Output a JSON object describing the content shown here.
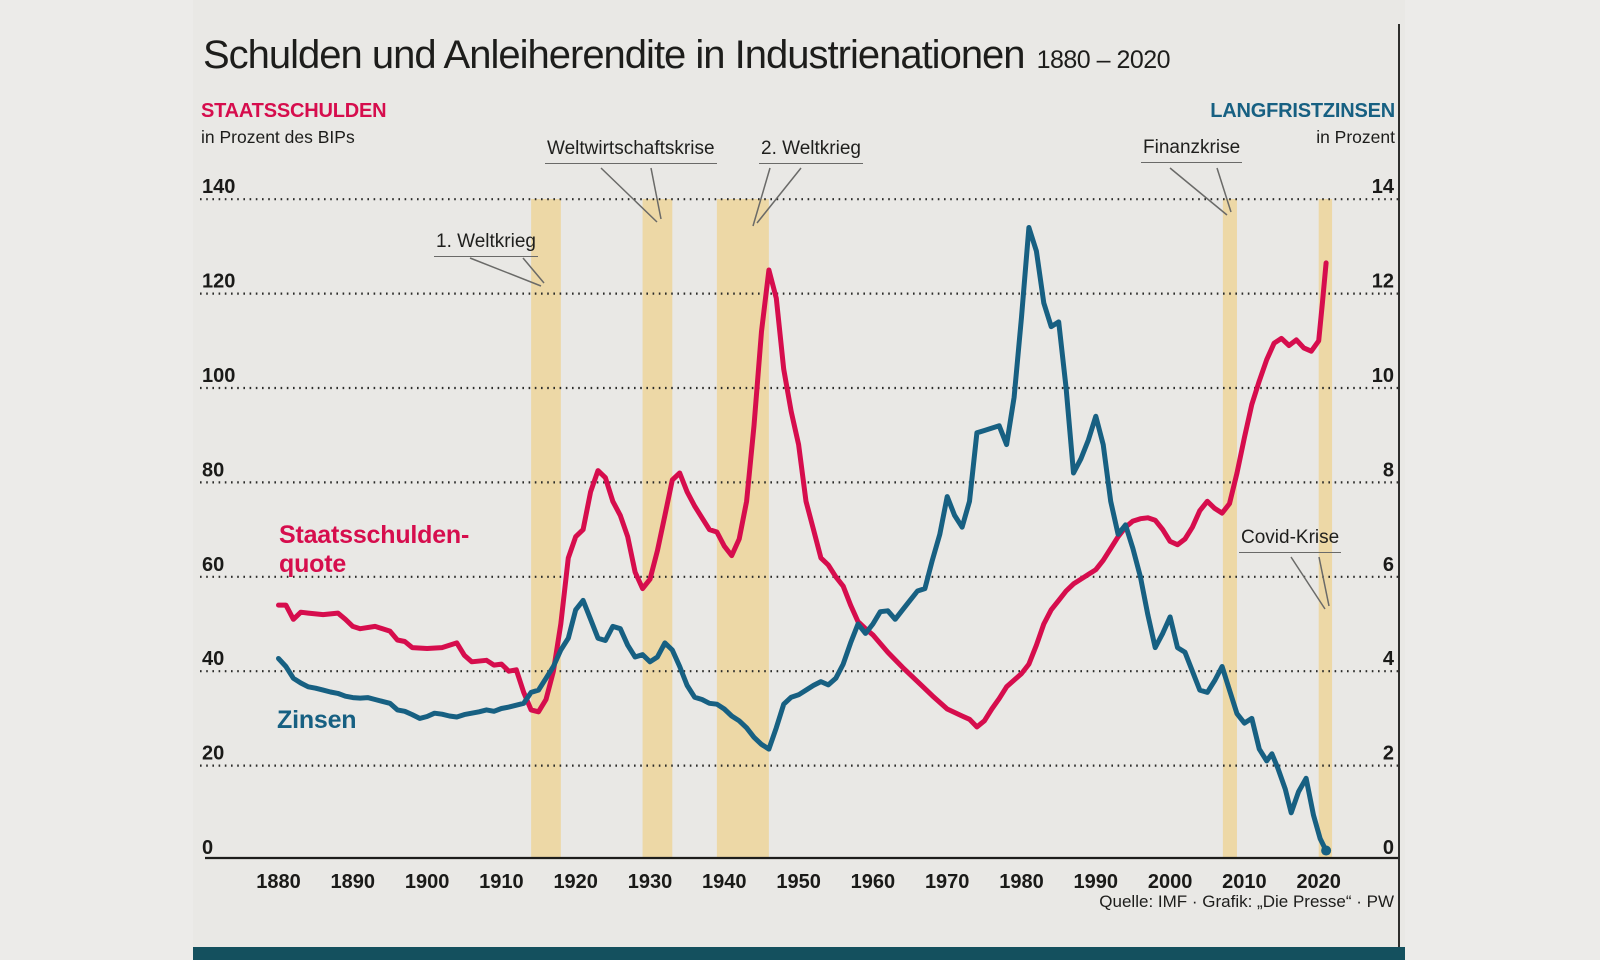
{
  "title": "Schulden und Anleiherendite in Industrienationen",
  "title_range": "1880 – 2020",
  "left_header": {
    "line1": "STAATSSCHULDEN",
    "line2": "in Prozent des BIPs"
  },
  "right_header": {
    "line1": "LANGFRISTZINSEN",
    "line2": "in Prozent"
  },
  "series_labels": {
    "debt_line1": "Staatsschulden-",
    "debt_line2": "quote",
    "rate": "Zinsen"
  },
  "source": "Quelle: IMF · Grafik: „Die Presse“ · PW",
  "colors": {
    "debt_line": "#d60d4d",
    "rate_line": "#176082",
    "event_band": "#edd8a6",
    "panel_background": "#e9e8e5",
    "footer_bar": "#14505e",
    "grid_dots": "#2b2b29",
    "axis_line": "#1d1d1b",
    "annotation_line": "#6a6a68"
  },
  "chart_data": {
    "type": "line",
    "title": "Schulden und Anleiherendite in Industrienationen",
    "x_range": [
      1880,
      2021
    ],
    "x_ticks": [
      1880,
      1890,
      1900,
      1910,
      1920,
      1930,
      1940,
      1950,
      1960,
      1970,
      1980,
      1990,
      2000,
      2010,
      2020
    ],
    "left_axis": {
      "label": "STAATSSCHULDEN in Prozent des BIPs",
      "ticks": [
        140,
        120,
        100,
        80,
        60,
        40,
        20,
        0
      ],
      "range": [
        0,
        140
      ],
      "grid": "dotted"
    },
    "right_axis": {
      "label": "LANGFRISTZINSEN in Prozent",
      "ticks": [
        14,
        12,
        10,
        8,
        6,
        4,
        2,
        0
      ],
      "range": [
        0,
        14
      ],
      "grid": "shared"
    },
    "bands": [
      {
        "id": "ww1",
        "label": "1. Weltkrieg",
        "from": 1914,
        "to": 1918
      },
      {
        "id": "wwk",
        "label": "Weltwirtschaftskrise",
        "from": 1929,
        "to": 1933
      },
      {
        "id": "ww2",
        "label": "2. Weltkrieg",
        "from": 1939,
        "to": 1946
      },
      {
        "id": "fin",
        "label": "Finanzkrise",
        "from": 2007.1,
        "to": 2009
      },
      {
        "id": "covid",
        "label": "Covid-Krise",
        "from": 2020,
        "to": 2021.8
      }
    ],
    "series": [
      {
        "name": "Staatsschuldenquote",
        "axis": "left",
        "unit": "% des BIPs",
        "points": [
          [
            1880,
            54
          ],
          [
            1881,
            54
          ],
          [
            1882,
            51
          ],
          [
            1883,
            52.5
          ],
          [
            1884,
            52.3
          ],
          [
            1886,
            52
          ],
          [
            1888,
            52.3
          ],
          [
            1889,
            51
          ],
          [
            1890,
            49.5
          ],
          [
            1891,
            49
          ],
          [
            1893,
            49.5
          ],
          [
            1895,
            48.5
          ],
          [
            1896,
            46.6
          ],
          [
            1897,
            46.3
          ],
          [
            1898,
            45
          ],
          [
            1900,
            44.8
          ],
          [
            1902,
            45
          ],
          [
            1903,
            45.5
          ],
          [
            1904,
            46
          ],
          [
            1905,
            43.4
          ],
          [
            1906,
            42
          ],
          [
            1908,
            42.3
          ],
          [
            1909,
            41.3
          ],
          [
            1910,
            41.5
          ],
          [
            1911,
            40
          ],
          [
            1912,
            40.3
          ],
          [
            1913,
            35.5
          ],
          [
            1914,
            31.8
          ],
          [
            1915,
            31.4
          ],
          [
            1916,
            34
          ],
          [
            1917,
            40
          ],
          [
            1918,
            50
          ],
          [
            1919,
            64
          ],
          [
            1920,
            68.5
          ],
          [
            1921,
            70
          ],
          [
            1922,
            78
          ],
          [
            1923,
            82.5
          ],
          [
            1924,
            81
          ],
          [
            1925,
            76
          ],
          [
            1926,
            73
          ],
          [
            1927,
            68.5
          ],
          [
            1928,
            61
          ],
          [
            1929,
            57.5
          ],
          [
            1930,
            59.5
          ],
          [
            1931,
            65.5
          ],
          [
            1932,
            73
          ],
          [
            1933,
            80.5
          ],
          [
            1934,
            82
          ],
          [
            1935,
            78
          ],
          [
            1936,
            75
          ],
          [
            1937,
            72.5
          ],
          [
            1938,
            70
          ],
          [
            1939,
            69.5
          ],
          [
            1940,
            66.5
          ],
          [
            1941,
            64.5
          ],
          [
            1942,
            68
          ],
          [
            1943,
            76
          ],
          [
            1944,
            92
          ],
          [
            1945,
            112
          ],
          [
            1946,
            125
          ],
          [
            1947,
            119
          ],
          [
            1948,
            104
          ],
          [
            1949,
            95
          ],
          [
            1950,
            88
          ],
          [
            1951,
            76
          ],
          [
            1952,
            70
          ],
          [
            1953,
            64
          ],
          [
            1954,
            62.5
          ],
          [
            1955,
            60
          ],
          [
            1956,
            58
          ],
          [
            1957,
            54
          ],
          [
            1958,
            50.5
          ],
          [
            1959,
            49
          ],
          [
            1960,
            47.7
          ],
          [
            1962,
            44
          ],
          [
            1964,
            40.8
          ],
          [
            1966,
            37.8
          ],
          [
            1968,
            34.8
          ],
          [
            1970,
            32
          ],
          [
            1972,
            30.5
          ],
          [
            1973,
            29.8
          ],
          [
            1974,
            28.2
          ],
          [
            1975,
            29.5
          ],
          [
            1976,
            32
          ],
          [
            1977,
            34.2
          ],
          [
            1978,
            36.7
          ],
          [
            1980,
            39.5
          ],
          [
            1981,
            41.5
          ],
          [
            1982,
            45.5
          ],
          [
            1983,
            50
          ],
          [
            1984,
            53
          ],
          [
            1985,
            55
          ],
          [
            1986,
            57
          ],
          [
            1987,
            58.5
          ],
          [
            1988,
            59.5
          ],
          [
            1989,
            60.5
          ],
          [
            1990,
            61.5
          ],
          [
            1991,
            63.5
          ],
          [
            1992,
            66
          ],
          [
            1993,
            68.5
          ],
          [
            1994,
            70.5
          ],
          [
            1995,
            71.8
          ],
          [
            1996,
            72.3
          ],
          [
            1997,
            72.5
          ],
          [
            1998,
            72
          ],
          [
            1999,
            70
          ],
          [
            2000,
            67.5
          ],
          [
            2001,
            66.8
          ],
          [
            2002,
            68
          ],
          [
            2003,
            70.5
          ],
          [
            2004,
            74
          ],
          [
            2005,
            76
          ],
          [
            2006,
            74.5
          ],
          [
            2007,
            73.5
          ],
          [
            2008,
            75.5
          ],
          [
            2009,
            82
          ],
          [
            2010,
            89.5
          ],
          [
            2011,
            96.5
          ],
          [
            2012,
            101.5
          ],
          [
            2013,
            106
          ],
          [
            2014,
            109.5
          ],
          [
            2015,
            110.5
          ],
          [
            2016,
            109
          ],
          [
            2017,
            110.2
          ],
          [
            2018,
            108.5
          ],
          [
            2019,
            107.8
          ],
          [
            2020,
            110
          ],
          [
            2020.5,
            118
          ],
          [
            2021,
            126.5
          ]
        ]
      },
      {
        "name": "Zinsen",
        "axis": "right",
        "unit": "%",
        "points": [
          [
            1880,
            4.27
          ],
          [
            1881,
            4.1
          ],
          [
            1882,
            3.85
          ],
          [
            1883,
            3.75
          ],
          [
            1884,
            3.67
          ],
          [
            1885,
            3.64
          ],
          [
            1886,
            3.6
          ],
          [
            1887,
            3.56
          ],
          [
            1888,
            3.53
          ],
          [
            1889,
            3.47
          ],
          [
            1890,
            3.44
          ],
          [
            1891,
            3.43
          ],
          [
            1892,
            3.44
          ],
          [
            1893,
            3.4
          ],
          [
            1894,
            3.36
          ],
          [
            1895,
            3.32
          ],
          [
            1896,
            3.18
          ],
          [
            1897,
            3.15
          ],
          [
            1898,
            3.08
          ],
          [
            1899,
            3
          ],
          [
            1900,
            3.04
          ],
          [
            1901,
            3.11
          ],
          [
            1902,
            3.09
          ],
          [
            1903,
            3.05
          ],
          [
            1904,
            3.03
          ],
          [
            1905,
            3.08
          ],
          [
            1906,
            3.11
          ],
          [
            1907,
            3.14
          ],
          [
            1908,
            3.18
          ],
          [
            1909,
            3.15
          ],
          [
            1910,
            3.21
          ],
          [
            1911,
            3.24
          ],
          [
            1912,
            3.28
          ],
          [
            1913,
            3.32
          ],
          [
            1914,
            3.55
          ],
          [
            1915,
            3.6
          ],
          [
            1916,
            3.85
          ],
          [
            1917,
            4.1
          ],
          [
            1918,
            4.45
          ],
          [
            1919,
            4.7
          ],
          [
            1920,
            5.3
          ],
          [
            1921,
            5.5
          ],
          [
            1922,
            5.1
          ],
          [
            1923,
            4.7
          ],
          [
            1924,
            4.65
          ],
          [
            1925,
            4.95
          ],
          [
            1926,
            4.9
          ],
          [
            1927,
            4.55
          ],
          [
            1928,
            4.3
          ],
          [
            1929,
            4.35
          ],
          [
            1930,
            4.2
          ],
          [
            1931,
            4.3
          ],
          [
            1932,
            4.6
          ],
          [
            1933,
            4.45
          ],
          [
            1934,
            4.1
          ],
          [
            1935,
            3.7
          ],
          [
            1936,
            3.45
          ],
          [
            1937,
            3.4
          ],
          [
            1938,
            3.32
          ],
          [
            1939,
            3.3
          ],
          [
            1940,
            3.2
          ],
          [
            1941,
            3.05
          ],
          [
            1942,
            2.95
          ],
          [
            1943,
            2.8
          ],
          [
            1944,
            2.6
          ],
          [
            1945,
            2.45
          ],
          [
            1946,
            2.35
          ],
          [
            1947,
            2.8
          ],
          [
            1948,
            3.3
          ],
          [
            1949,
            3.45
          ],
          [
            1950,
            3.5
          ],
          [
            1951,
            3.6
          ],
          [
            1952,
            3.7
          ],
          [
            1953,
            3.78
          ],
          [
            1954,
            3.71
          ],
          [
            1955,
            3.85
          ],
          [
            1956,
            4.15
          ],
          [
            1957,
            4.6
          ],
          [
            1958,
            5
          ],
          [
            1959,
            4.8
          ],
          [
            1960,
            5
          ],
          [
            1961,
            5.26
          ],
          [
            1962,
            5.28
          ],
          [
            1963,
            5.1
          ],
          [
            1964,
            5.3
          ],
          [
            1965,
            5.5
          ],
          [
            1966,
            5.7
          ],
          [
            1967,
            5.75
          ],
          [
            1968,
            6.35
          ],
          [
            1969,
            6.9
          ],
          [
            1970,
            7.7
          ],
          [
            1971,
            7.3
          ],
          [
            1972,
            7.05
          ],
          [
            1973,
            7.6
          ],
          [
            1974,
            9.05
          ],
          [
            1975,
            9.1
          ],
          [
            1976,
            9.15
          ],
          [
            1977,
            9.2
          ],
          [
            1978,
            8.8
          ],
          [
            1979,
            9.8
          ],
          [
            1980,
            11.5
          ],
          [
            1981,
            13.4
          ],
          [
            1982,
            12.9
          ],
          [
            1983,
            11.8
          ],
          [
            1984,
            11.3
          ],
          [
            1985,
            11.4
          ],
          [
            1986,
            10
          ],
          [
            1987,
            8.2
          ],
          [
            1988,
            8.5
          ],
          [
            1989,
            8.9
          ],
          [
            1990,
            9.4
          ],
          [
            1991,
            8.8
          ],
          [
            1992,
            7.6
          ],
          [
            1993,
            6.9
          ],
          [
            1994,
            7.1
          ],
          [
            1995,
            6.6
          ],
          [
            1996,
            6
          ],
          [
            1997,
            5.2
          ],
          [
            1998,
            4.5
          ],
          [
            1999,
            4.8
          ],
          [
            2000,
            5.15
          ],
          [
            2001,
            4.5
          ],
          [
            2002,
            4.4
          ],
          [
            2003,
            4
          ],
          [
            2004,
            3.6
          ],
          [
            2005,
            3.55
          ],
          [
            2006,
            3.8
          ],
          [
            2007,
            4.1
          ],
          [
            2008,
            3.6
          ],
          [
            2009,
            3.1
          ],
          [
            2010,
            2.9
          ],
          [
            2011,
            3
          ],
          [
            2012,
            2.35
          ],
          [
            2013,
            2.1
          ],
          [
            2013.7,
            2.25
          ],
          [
            2014.5,
            1.95
          ],
          [
            2015.5,
            1.5
          ],
          [
            2016.3,
            1
          ],
          [
            2017.3,
            1.45
          ],
          [
            2018.3,
            1.73
          ],
          [
            2019.3,
            0.95
          ],
          [
            2020.2,
            0.45
          ],
          [
            2021,
            0.2
          ]
        ]
      }
    ],
    "legend_position": "on-chart labels"
  }
}
